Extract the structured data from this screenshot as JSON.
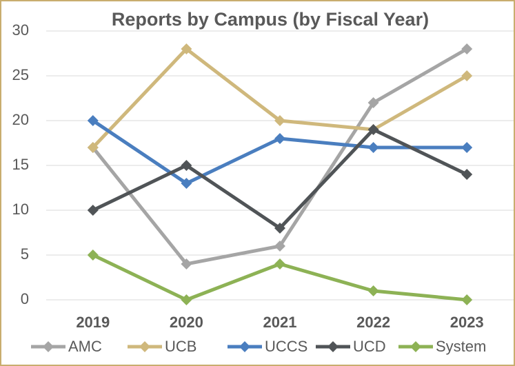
{
  "chart_data": {
    "type": "line",
    "title": "Reports by Campus (by Fiscal Year)",
    "categories": [
      "2019",
      "2020",
      "2021",
      "2022",
      "2023"
    ],
    "series": [
      {
        "name": "AMC",
        "color": "#a5a5a5",
        "values": [
          17,
          4,
          6,
          22,
          28
        ]
      },
      {
        "name": "UCB",
        "color": "#cfb87c",
        "values": [
          17,
          28,
          20,
          19,
          25
        ]
      },
      {
        "name": "UCCS",
        "color": "#4a7ebf",
        "values": [
          20,
          13,
          18,
          17,
          17
        ]
      },
      {
        "name": "UCD",
        "color": "#505457",
        "values": [
          10,
          15,
          8,
          19,
          14
        ]
      },
      {
        "name": "System",
        "color": "#8db255",
        "values": [
          5,
          0,
          4,
          1,
          0
        ]
      }
    ],
    "ylim": [
      0,
      30
    ],
    "yticks": [
      0,
      5,
      10,
      15,
      20,
      25,
      30
    ],
    "grid": true,
    "legend": "bottom"
  }
}
